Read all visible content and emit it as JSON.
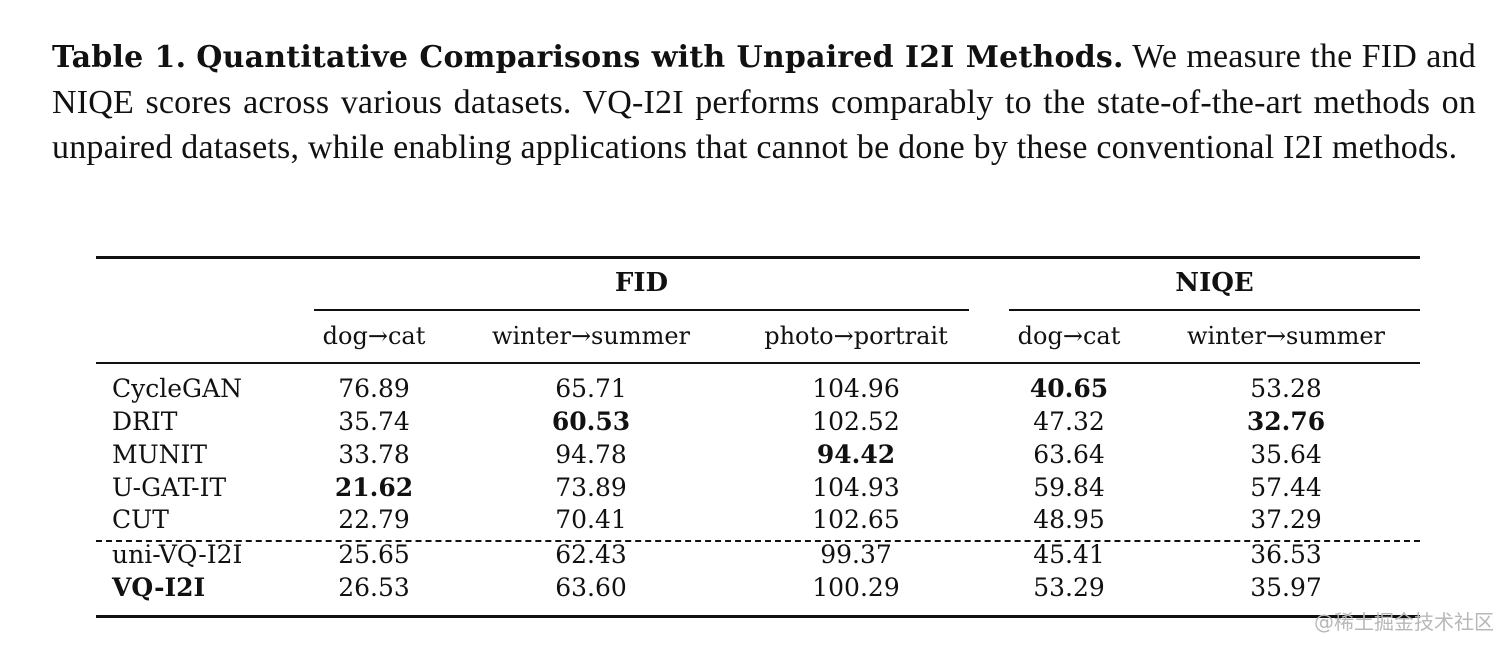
{
  "caption": {
    "label": "Table 1.",
    "title": "Quantitative Comparisons with Unpaired I2I Methods.",
    "text": " We measure the FID and NIQE scores across various datasets. VQ-I2I performs comparably to the state-of-the-art methods on unpaired datasets, while enabling applications that cannot be done by these conventional I2I methods."
  },
  "table": {
    "groups": [
      {
        "label": "FID"
      },
      {
        "label": "NIQE"
      }
    ],
    "columns": [
      "dog→cat",
      "winter→summer",
      "photo→portrait",
      "dog→cat",
      "winter→summer"
    ],
    "rows": [
      {
        "method": "CycleGAN",
        "method_bold": false,
        "values": [
          "76.89",
          "65.71",
          "104.96",
          "40.65",
          "53.28"
        ],
        "bold": [
          false,
          false,
          false,
          true,
          false
        ]
      },
      {
        "method": "DRIT",
        "method_bold": false,
        "values": [
          "35.74",
          "60.53",
          "102.52",
          "47.32",
          "32.76"
        ],
        "bold": [
          false,
          true,
          false,
          false,
          true
        ]
      },
      {
        "method": "MUNIT",
        "method_bold": false,
        "values": [
          "33.78",
          "94.78",
          "94.42",
          "63.64",
          "35.64"
        ],
        "bold": [
          false,
          false,
          true,
          false,
          false
        ]
      },
      {
        "method": "U-GAT-IT",
        "method_bold": false,
        "values": [
          "21.62",
          "73.89",
          "104.93",
          "59.84",
          "57.44"
        ],
        "bold": [
          true,
          false,
          false,
          false,
          false
        ]
      },
      {
        "method": "CUT",
        "method_bold": false,
        "values": [
          "22.79",
          "70.41",
          "102.65",
          "48.95",
          "37.29"
        ],
        "bold": [
          false,
          false,
          false,
          false,
          false
        ]
      },
      {
        "method": "uni-VQ-I2I",
        "method_bold": false,
        "values": [
          "25.65",
          "62.43",
          "99.37",
          "45.41",
          "36.53"
        ],
        "bold": [
          false,
          false,
          false,
          false,
          false
        ]
      },
      {
        "method": "VQ-I2I",
        "method_bold": true,
        "values": [
          "26.53",
          "63.60",
          "100.29",
          "53.29",
          "35.97"
        ],
        "bold": [
          false,
          false,
          false,
          false,
          false
        ]
      }
    ]
  },
  "watermark": "@稀土掘金技术社区"
}
